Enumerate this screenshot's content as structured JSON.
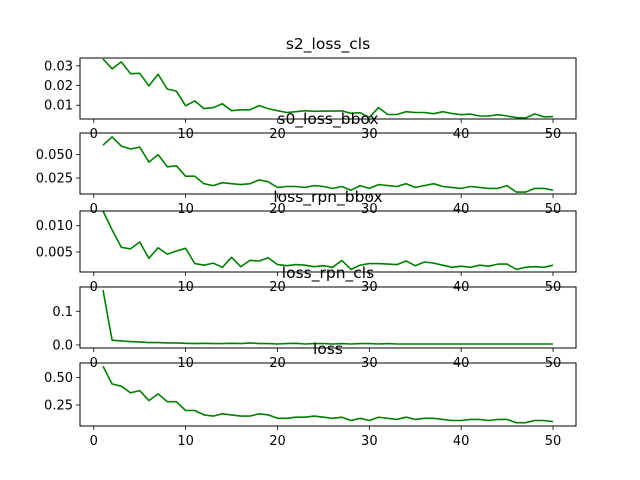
{
  "chart_data": [
    {
      "type": "line",
      "title": "s2_loss_cls",
      "xlabel": "",
      "ylabel": "",
      "xlim": [
        -1.5,
        52.5
      ],
      "ylim": [
        0.003,
        0.034
      ],
      "xticks": [
        0,
        10,
        20,
        30,
        40,
        50
      ],
      "yticks": [
        0.01,
        0.02,
        0.03
      ],
      "ytick_labels": [
        "0.01",
        "0.02",
        "0.03"
      ],
      "color": "#008000",
      "grid": false,
      "series": [
        {
          "x": [
            1,
            2,
            3,
            4,
            5,
            6,
            7,
            8,
            9,
            10,
            11,
            12,
            13,
            14,
            15,
            16,
            17,
            18,
            19,
            20,
            21,
            22,
            23,
            24,
            25,
            26,
            27,
            28,
            29,
            30,
            31,
            32,
            33,
            34,
            35,
            36,
            37,
            38,
            39,
            40,
            41,
            42,
            43,
            44,
            45,
            46,
            47,
            48,
            49,
            50
          ],
          "values": [
            0.0335,
            0.0285,
            0.032,
            0.026,
            0.0262,
            0.0198,
            0.0257,
            0.0182,
            0.0172,
            0.0097,
            0.0122,
            0.0083,
            0.0088,
            0.0107,
            0.0072,
            0.0077,
            0.0077,
            0.0098,
            0.0083,
            0.0072,
            0.0063,
            0.0067,
            0.0072,
            0.0069,
            0.007,
            0.007,
            0.0071,
            0.0059,
            0.0062,
            0.0038,
            0.0088,
            0.0053,
            0.0053,
            0.0067,
            0.0063,
            0.0063,
            0.0057,
            0.0067,
            0.0058,
            0.0052,
            0.0055,
            0.0045,
            0.0045,
            0.0052,
            0.0045,
            0.0037,
            0.0035,
            0.0056,
            0.0041,
            0.0042
          ]
        }
      ]
    },
    {
      "type": "line",
      "title": "s0_loss_bbox",
      "xlabel": "",
      "ylabel": "",
      "xlim": [
        -1.5,
        52.5
      ],
      "ylim": [
        0.008,
        0.073
      ],
      "xticks": [
        0,
        10,
        20,
        30,
        40,
        50
      ],
      "yticks": [
        0.025,
        0.05
      ],
      "ytick_labels": [
        "0.025",
        "0.050"
      ],
      "color": "#008000",
      "grid": false,
      "series": [
        {
          "x": [
            1,
            2,
            3,
            4,
            5,
            6,
            7,
            8,
            9,
            10,
            11,
            12,
            13,
            14,
            15,
            16,
            17,
            18,
            19,
            20,
            21,
            22,
            23,
            24,
            25,
            26,
            27,
            28,
            29,
            30,
            31,
            32,
            33,
            34,
            35,
            36,
            37,
            38,
            39,
            40,
            41,
            42,
            43,
            44,
            45,
            46,
            47,
            48,
            49,
            50
          ],
          "values": [
            0.06,
            0.069,
            0.059,
            0.056,
            0.058,
            0.042,
            0.05,
            0.037,
            0.038,
            0.027,
            0.027,
            0.019,
            0.017,
            0.02,
            0.019,
            0.018,
            0.019,
            0.023,
            0.021,
            0.015,
            0.016,
            0.016,
            0.015,
            0.017,
            0.016,
            0.014,
            0.016,
            0.012,
            0.017,
            0.014,
            0.018,
            0.017,
            0.016,
            0.019,
            0.015,
            0.017,
            0.019,
            0.016,
            0.015,
            0.014,
            0.016,
            0.015,
            0.014,
            0.014,
            0.017,
            0.01,
            0.01,
            0.014,
            0.014,
            0.012
          ]
        }
      ]
    },
    {
      "type": "line",
      "title": "loss_rpn_bbox",
      "xlabel": "",
      "ylabel": "",
      "xlim": [
        -1.5,
        52.5
      ],
      "ylim": [
        0.0012,
        0.0128
      ],
      "xticks": [
        0,
        10,
        20,
        30,
        40,
        50
      ],
      "yticks": [
        0.005,
        0.01
      ],
      "ytick_labels": [
        "0.005",
        "0.010"
      ],
      "color": "#008000",
      "grid": false,
      "series": [
        {
          "x": [
            1,
            2,
            3,
            4,
            5,
            6,
            7,
            8,
            9,
            10,
            11,
            12,
            13,
            14,
            15,
            16,
            17,
            18,
            19,
            20,
            21,
            22,
            23,
            24,
            25,
            26,
            27,
            28,
            29,
            30,
            31,
            32,
            33,
            34,
            35,
            36,
            37,
            38,
            39,
            40,
            41,
            42,
            43,
            44,
            45,
            46,
            47,
            48,
            49,
            50
          ],
          "values": [
            0.0128,
            0.0092,
            0.0059,
            0.0056,
            0.0069,
            0.0038,
            0.0058,
            0.0046,
            0.0052,
            0.0057,
            0.0028,
            0.0025,
            0.0029,
            0.0021,
            0.004,
            0.0022,
            0.0034,
            0.0033,
            0.0039,
            0.0026,
            0.0024,
            0.0026,
            0.0025,
            0.0022,
            0.0024,
            0.0021,
            0.0034,
            0.0017,
            0.0025,
            0.0028,
            0.0028,
            0.0027,
            0.0026,
            0.0033,
            0.0024,
            0.0031,
            0.0029,
            0.0025,
            0.0021,
            0.0023,
            0.0021,
            0.0025,
            0.0023,
            0.0027,
            0.0027,
            0.0017,
            0.0021,
            0.0022,
            0.0021,
            0.0025
          ]
        }
      ]
    },
    {
      "type": "line",
      "title": "loss_rpn_cls",
      "xlabel": "",
      "ylabel": "",
      "xlim": [
        -1.5,
        52.5
      ],
      "ylim": [
        -0.009,
        0.172
      ],
      "xticks": [
        0,
        10,
        20,
        30,
        40,
        50
      ],
      "yticks": [
        0.0,
        0.1
      ],
      "ytick_labels": [
        "0.0",
        "0.1"
      ],
      "color": "#008000",
      "grid": false,
      "series": [
        {
          "x": [
            1,
            2,
            3,
            4,
            5,
            6,
            7,
            8,
            9,
            10,
            11,
            12,
            13,
            14,
            15,
            16,
            17,
            18,
            19,
            20,
            21,
            22,
            23,
            24,
            25,
            26,
            27,
            28,
            29,
            30,
            31,
            32,
            33,
            34,
            35,
            36,
            37,
            38,
            39,
            40,
            41,
            42,
            43,
            44,
            45,
            46,
            47,
            48,
            49,
            50
          ],
          "values": [
            0.163,
            0.014,
            0.012,
            0.01,
            0.009,
            0.007,
            0.007,
            0.006,
            0.006,
            0.005,
            0.004,
            0.005,
            0.004,
            0.004,
            0.005,
            0.004,
            0.006,
            0.004,
            0.004,
            0.003,
            0.004,
            0.005,
            0.003,
            0.004,
            0.004,
            0.003,
            0.004,
            0.003,
            0.004,
            0.004,
            0.003,
            0.004,
            0.003,
            0.003,
            0.003,
            0.003,
            0.003,
            0.003,
            0.003,
            0.003,
            0.003,
            0.003,
            0.003,
            0.003,
            0.003,
            0.003,
            0.003,
            0.003,
            0.003,
            0.003
          ]
        }
      ]
    },
    {
      "type": "line",
      "title": "loss",
      "xlabel": "",
      "ylabel": "",
      "xlim": [
        -1.5,
        52.5
      ],
      "ylim": [
        0.06,
        0.63
      ],
      "xticks": [
        0,
        10,
        20,
        30,
        40,
        50
      ],
      "yticks": [
        0.25,
        0.5
      ],
      "ytick_labels": [
        "0.25",
        "0.50"
      ],
      "xtick_labels_visible": true,
      "color": "#008000",
      "grid": false,
      "series": [
        {
          "x": [
            1,
            2,
            3,
            4,
            5,
            6,
            7,
            8,
            9,
            10,
            11,
            12,
            13,
            14,
            15,
            16,
            17,
            18,
            19,
            20,
            21,
            22,
            23,
            24,
            25,
            26,
            27,
            28,
            29,
            30,
            31,
            32,
            33,
            34,
            35,
            36,
            37,
            38,
            39,
            40,
            41,
            42,
            43,
            44,
            45,
            46,
            47,
            48,
            49,
            50
          ],
          "values": [
            0.6,
            0.44,
            0.42,
            0.36,
            0.38,
            0.29,
            0.35,
            0.28,
            0.28,
            0.2,
            0.2,
            0.16,
            0.15,
            0.17,
            0.16,
            0.15,
            0.15,
            0.17,
            0.16,
            0.13,
            0.13,
            0.14,
            0.14,
            0.15,
            0.14,
            0.13,
            0.14,
            0.11,
            0.13,
            0.11,
            0.14,
            0.13,
            0.12,
            0.14,
            0.12,
            0.13,
            0.13,
            0.12,
            0.11,
            0.11,
            0.12,
            0.12,
            0.11,
            0.12,
            0.12,
            0.09,
            0.09,
            0.11,
            0.11,
            0.1
          ]
        }
      ]
    }
  ]
}
